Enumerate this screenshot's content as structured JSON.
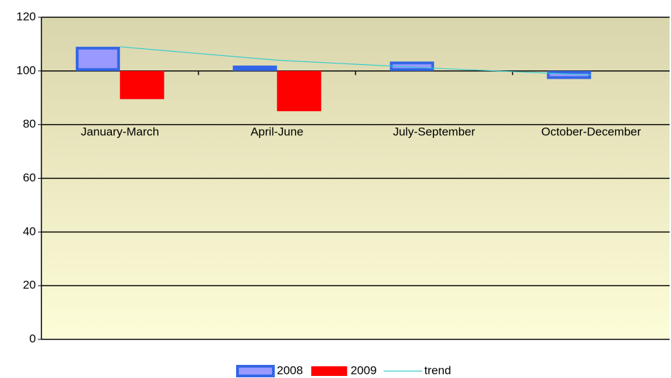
{
  "chart_data": {
    "type": "bar",
    "categories": [
      "January-March",
      "April-June",
      "July-September",
      "October-December"
    ],
    "series": [
      {
        "name": "2008",
        "color": "#9999ff",
        "values": [
          109,
          102,
          103.5,
          97
        ]
      },
      {
        "name": "2009",
        "color": "#ff0000",
        "values": [
          89.5,
          85,
          null,
          null
        ]
      },
      {
        "name": "trend",
        "color": "#33cccc",
        "type": "line",
        "values": [
          109,
          104,
          101,
          98.5
        ]
      }
    ],
    "ylim": [
      0,
      120
    ],
    "yticks": [
      0,
      20,
      40,
      60,
      80,
      100,
      120
    ],
    "grid": true,
    "baseline": 100,
    "legend": "bottom"
  }
}
